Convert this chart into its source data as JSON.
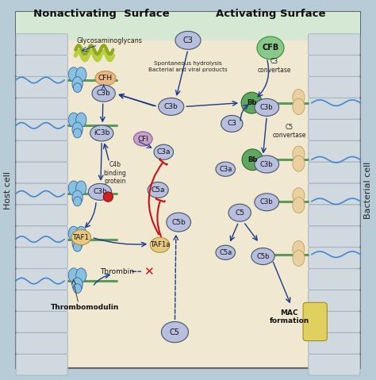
{
  "background_color": "#f0e8d0",
  "border_color": "#666666",
  "fig_bg": "#b8ccd8",
  "header_left": "Nonactivating  Surface",
  "header_right": "Activating Surface",
  "header_bg": "#d4e8d4",
  "side_left_label": "Host cell",
  "side_right_label": "Bacterial cell",
  "wall_color": "#d0d8e0",
  "wall_edge_color": "#a0b0c0",
  "membrane_color": "#5a9a5a",
  "blue": "#1a3a8a",
  "red": "#cc1111",
  "c3_color": "#b8bedd",
  "cfh_color": "#e8b888",
  "cfi_color": "#c8a0c8",
  "cfb_color": "#88c888",
  "bb_color": "#60a860",
  "taf_color": "#e8c880",
  "gly_color": "#b8d040",
  "tm_color": "#88bedd",
  "mac_color": "#e0d060",
  "red_dot": "#cc2222"
}
